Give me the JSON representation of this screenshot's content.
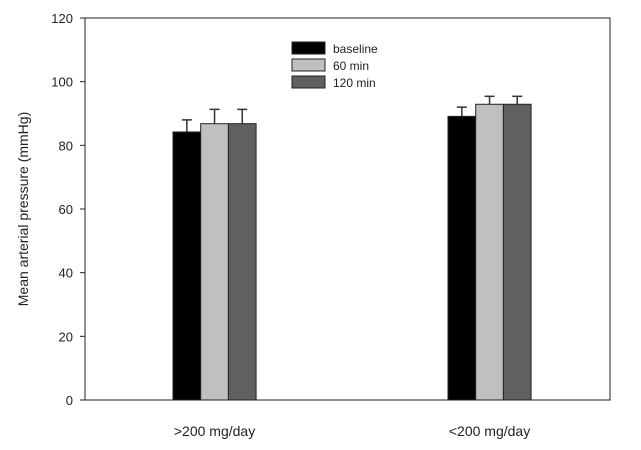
{
  "chart_data": {
    "type": "bar",
    "title": "",
    "xlabel": "",
    "ylabel": "Mean arterial pressure (mmHg)",
    "ylim": [
      0,
      120
    ],
    "yticks": [
      0,
      20,
      40,
      60,
      80,
      100,
      120
    ],
    "categories": [
      ">200 mg/day",
      "<200 mg/day"
    ],
    "legend_position": "top-center",
    "grid": false,
    "series": [
      {
        "name": "baseline",
        "color": "#000000",
        "values": [
          84.2,
          89.1
        ],
        "error": [
          3.8,
          2.9
        ]
      },
      {
        "name": "60 min",
        "color": "#c0c0c0",
        "values": [
          86.8,
          92.9
        ],
        "error": [
          4.5,
          2.5
        ]
      },
      {
        "name": "120 min",
        "color": "#606060",
        "values": [
          86.8,
          92.9
        ],
        "error": [
          4.5,
          2.5
        ]
      }
    ]
  }
}
